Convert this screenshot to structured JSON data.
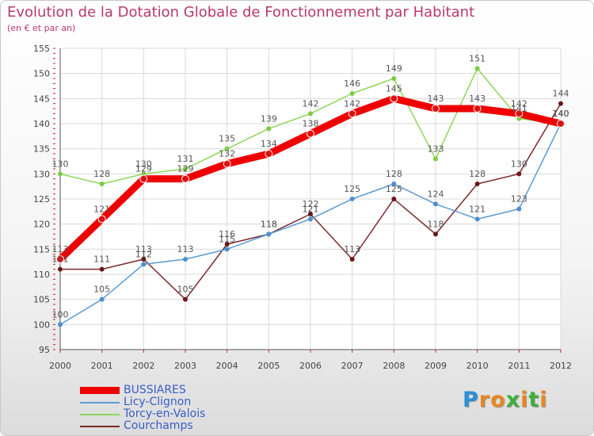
{
  "chart_data": {
    "type": "line",
    "title": "Evolution de la Dotation Globale de Fonctionnement par Habitant",
    "subtitle": "(en € et par an)",
    "x": [
      "2000",
      "2001",
      "2002",
      "2003",
      "2004",
      "2005",
      "2006",
      "2007",
      "2008",
      "2009",
      "2010",
      "2011",
      "2012"
    ],
    "ylim": [
      95,
      155
    ],
    "yticks": [
      95,
      100,
      105,
      110,
      115,
      120,
      125,
      130,
      135,
      140,
      145,
      150,
      155
    ],
    "grid": true,
    "legend_position": "bottom-left",
    "series": [
      {
        "name": "BUSSIARES",
        "color": "#ee0000",
        "values": [
          113,
          121,
          129,
          129,
          132,
          134,
          138,
          142,
          145,
          143,
          143,
          142,
          140
        ]
      },
      {
        "name": "Licy-Clignon",
        "color": "#5b9bd5",
        "values": [
          100,
          105,
          112,
          113,
          115,
          118,
          121,
          125,
          128,
          124,
          121,
          123,
          140
        ]
      },
      {
        "name": "Torcy-en-Valois",
        "color": "#8ed65a",
        "values": [
          130,
          128,
          130,
          131,
          135,
          139,
          142,
          146,
          149,
          133,
          151,
          141,
          140
        ]
      },
      {
        "name": "Courchamps",
        "color": "#7a2a2a",
        "values": [
          111,
          111,
          113,
          105,
          116,
          118,
          122,
          113,
          125,
          118,
          128,
          130,
          144
        ]
      }
    ]
  },
  "branding": {
    "logo_letters": [
      "P",
      "r",
      "o",
      "x",
      "i",
      "t",
      "i"
    ],
    "logo_colors": [
      "#2b8fd6",
      "#e8871e",
      "#e8871e",
      "#3fae3a",
      "#e8871e",
      "#3fae3a",
      "#e8871e"
    ]
  }
}
